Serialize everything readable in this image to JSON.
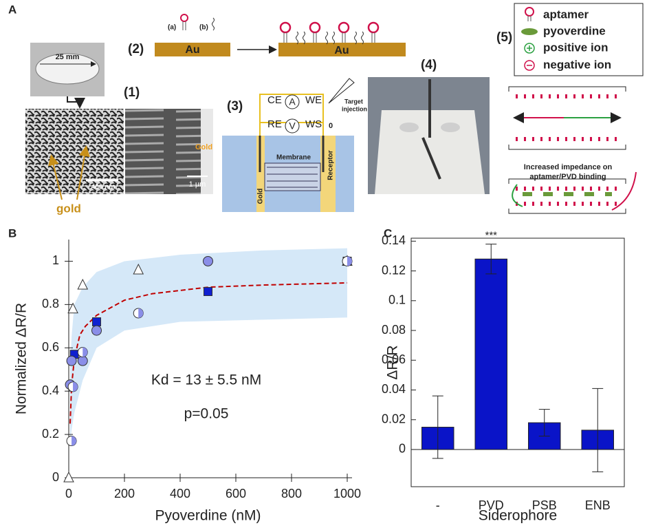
{
  "panel_a": {
    "label": "A",
    "step1": {
      "label": "(1)",
      "scale_disc": "25 mm",
      "scale_sem": "400 nm",
      "scale_cross": "1 µm",
      "gold_layer": "Gold",
      "gold_arrow": "gold"
    },
    "step2": {
      "label": "(2)",
      "a": "(a)",
      "b": "(b)",
      "substrate_left": "Au",
      "substrate_right": "Au"
    },
    "step3": {
      "label": "(3)",
      "ce": "CE",
      "we": "WE",
      "ammeter": "A",
      "re": "RE",
      "voltmeter": "V",
      "ws": "WS",
      "target": [
        "Target",
        "injection"
      ],
      "zero": "0",
      "membrane": "Membrane",
      "receptor": "Receptor",
      "gold": "Gold"
    },
    "step4": {
      "label": "(4)"
    },
    "step5": {
      "label": "(5)",
      "legend": [
        "aptamer",
        "pyoverdine",
        "positive ion",
        "negative ion"
      ],
      "caption": [
        "Increased impedance on",
        "aptamer/PVD binding"
      ]
    }
  },
  "chart_data": [
    {
      "type": "scatter",
      "panel": "B",
      "xlabel": "Pyoverdine (nM)",
      "ylabel": "Normalized ΔR/R",
      "xlim": [
        0,
        1000
      ],
      "ylim": [
        0,
        1.1
      ],
      "xticks": [
        0,
        200,
        400,
        600,
        800,
        1000
      ],
      "yticks": [
        0,
        0.2,
        0.4,
        0.6,
        0.8,
        1
      ],
      "annotations": [
        "Kd = 13 ± 5.5 nM",
        "p=0.05"
      ],
      "band": {
        "color": "#d5e8f8",
        "x": [
          5,
          10,
          20,
          50,
          100,
          200,
          400,
          700,
          1000
        ],
        "upper": [
          0.5,
          0.65,
          0.8,
          0.88,
          0.95,
          1.0,
          1.03,
          1.05,
          1.06
        ],
        "lower": [
          0.15,
          0.22,
          0.3,
          0.45,
          0.6,
          0.68,
          0.72,
          0.73,
          0.74
        ]
      },
      "fit": {
        "color": "#c00000",
        "x": [
          5,
          10,
          20,
          40,
          60,
          100,
          200,
          300,
          500,
          700,
          1000
        ],
        "values": [
          0.25,
          0.42,
          0.55,
          0.66,
          0.7,
          0.75,
          0.82,
          0.85,
          0.88,
          0.89,
          0.9
        ]
      },
      "series": [
        {
          "marker": "triangle",
          "color": "#ffffff",
          "x": [
            0,
            15,
            50,
            250,
            1000
          ],
          "values": [
            0,
            0.78,
            0.89,
            0.96,
            1.0
          ]
        },
        {
          "marker": "square",
          "color": "#1020d0",
          "x": [
            20,
            100,
            500,
            1000
          ],
          "values": [
            0.57,
            0.72,
            0.86,
            1.0
          ]
        },
        {
          "marker": "circle",
          "color": "#8a8ee8",
          "x": [
            5,
            10,
            50,
            100,
            500
          ],
          "values": [
            0.43,
            0.54,
            0.54,
            0.68,
            1.0
          ]
        },
        {
          "marker": "half",
          "color": "#8a8ee8",
          "x": [
            10,
            15,
            50,
            250,
            1000
          ],
          "values": [
            0.17,
            0.42,
            0.58,
            0.76,
            1.0
          ]
        }
      ]
    },
    {
      "type": "bar",
      "panel": "C",
      "xlabel": "Siderophore",
      "ylabel": "ΔR/R",
      "color": "#0a14c8",
      "categories": [
        "-",
        "PVD",
        "PSB",
        "ENB"
      ],
      "values": [
        0.015,
        0.128,
        0.018,
        0.013
      ],
      "errors": [
        0.021,
        0.01,
        0.009,
        0.028
      ],
      "bar_annotations": [
        null,
        "***",
        null,
        null
      ],
      "ylim": [
        -0.025,
        0.142
      ],
      "yticks": [
        0,
        0.02,
        0.04,
        0.06,
        0.08,
        0.1,
        0.12,
        0.14
      ]
    }
  ]
}
